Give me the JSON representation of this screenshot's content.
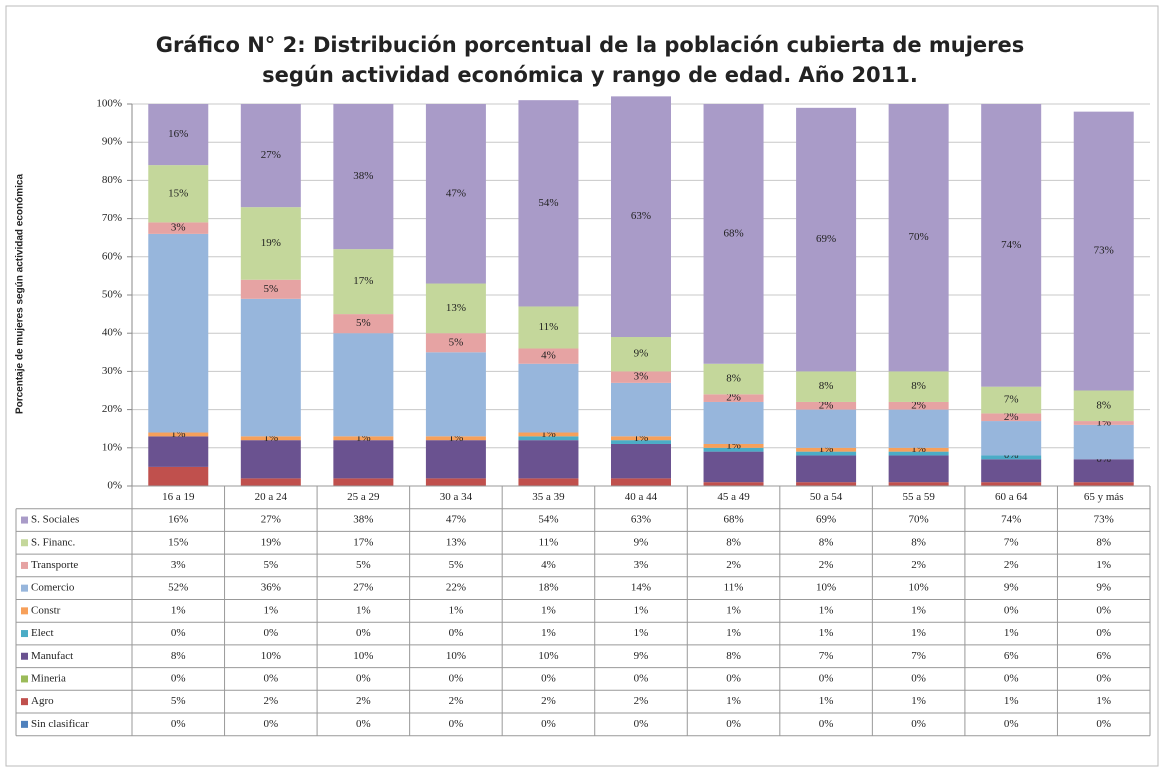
{
  "chart_data": {
    "type": "bar",
    "stacked": true,
    "title": [
      "Gráfico N° 2: Distribución porcentual de la población cubierta de mujeres",
      "según actividad económica y rango de edad. Año 2011."
    ],
    "ylabel": "Porcentaje de mujeres según actividad económica",
    "categories": [
      "16 a 19",
      "20 a 24",
      "25 a 29",
      "30 a 34",
      "35 a 39",
      "40 a 44",
      "45 a 49",
      "50 a 54",
      "55 a 59",
      "60 a 64",
      "65 y más"
    ],
    "ylim": [
      0,
      100
    ],
    "yticks": [
      {
        "value": 0,
        "label": "0%"
      },
      {
        "value": 10,
        "label": "10%"
      },
      {
        "value": 20,
        "label": "20%"
      },
      {
        "value": 30,
        "label": "30%"
      },
      {
        "value": 40,
        "label": "40%"
      },
      {
        "value": 50,
        "label": "50%"
      },
      {
        "value": 60,
        "label": "60%"
      },
      {
        "value": 70,
        "label": "70%"
      },
      {
        "value": 80,
        "label": "80%"
      },
      {
        "value": 90,
        "label": "90%"
      },
      {
        "value": 100,
        "label": "100%"
      }
    ],
    "grid": true,
    "series": [
      {
        "name": "S. Sociales",
        "color": "#a99bc8",
        "data_labels": true,
        "values": [
          16,
          27,
          38,
          47,
          54,
          63,
          68,
          69,
          70,
          74,
          73
        ],
        "value_labels": [
          "16%",
          "27%",
          "38%",
          "47%",
          "54%",
          "63%",
          "68%",
          "69%",
          "70%",
          "74%",
          "73%"
        ]
      },
      {
        "name": "S. Financ.",
        "color": "#c4d79b",
        "data_labels": true,
        "values": [
          15,
          19,
          17,
          13,
          11,
          9,
          8,
          8,
          8,
          7,
          8
        ],
        "value_labels": [
          "15%",
          "19%",
          "17%",
          "13%",
          "11%",
          "9%",
          "8%",
          "8%",
          "8%",
          "7%",
          "8%"
        ]
      },
      {
        "name": "Transporte",
        "color": "#e6a3a3",
        "data_labels": true,
        "values": [
          3,
          5,
          5,
          5,
          4,
          3,
          2,
          2,
          2,
          2,
          1
        ],
        "value_labels": [
          "3%",
          "5%",
          "5%",
          "5%",
          "4%",
          "3%",
          "2%",
          "2%",
          "2%",
          "2%",
          "1%"
        ]
      },
      {
        "name": "Comercio",
        "color": "#97b6dc",
        "values": [
          52,
          36,
          27,
          22,
          18,
          14,
          11,
          10,
          10,
          9,
          9
        ],
        "value_labels": [
          "52%",
          "36%",
          "27%",
          "22%",
          "18%",
          "14%",
          "11%",
          "10%",
          "10%",
          "9%",
          "9%"
        ]
      },
      {
        "name": "Constr",
        "color": "#f7a05a",
        "data_labels": true,
        "values": [
          1,
          1,
          1,
          1,
          1,
          1,
          1,
          1,
          1,
          0,
          0
        ],
        "value_labels": [
          "1%",
          "1%",
          "1%",
          "1%",
          "1%",
          "1%",
          "1%",
          "1%",
          "1%",
          "0%",
          "0%"
        ]
      },
      {
        "name": "Elect",
        "color": "#4bacc6",
        "values": [
          0,
          0,
          0,
          0,
          1,
          1,
          1,
          1,
          1,
          1,
          0
        ],
        "value_labels": [
          "0%",
          "0%",
          "0%",
          "0%",
          "1%",
          "1%",
          "1%",
          "1%",
          "1%",
          "1%",
          "0%"
        ]
      },
      {
        "name": "Manufact",
        "color": "#6a5290",
        "values": [
          8,
          10,
          10,
          10,
          10,
          9,
          8,
          7,
          7,
          6,
          6
        ],
        "value_labels": [
          "8%",
          "10%",
          "10%",
          "10%",
          "10%",
          "9%",
          "8%",
          "7%",
          "7%",
          "6%",
          "6%"
        ]
      },
      {
        "name": "Mineria",
        "color": "#9bbb59",
        "values": [
          0,
          0,
          0,
          0,
          0,
          0,
          0,
          0,
          0,
          0,
          0
        ],
        "value_labels": [
          "0%",
          "0%",
          "0%",
          "0%",
          "0%",
          "0%",
          "0%",
          "0%",
          "0%",
          "0%",
          "0%"
        ]
      },
      {
        "name": "Agro",
        "color": "#c0504d",
        "values": [
          5,
          2,
          2,
          2,
          2,
          2,
          1,
          1,
          1,
          1,
          1
        ],
        "value_labels": [
          "5%",
          "2%",
          "2%",
          "2%",
          "2%",
          "2%",
          "1%",
          "1%",
          "1%",
          "1%",
          "1%"
        ]
      },
      {
        "name": "Sin clasificar",
        "color": "#4f81bd",
        "values": [
          0,
          0,
          0,
          0,
          0,
          0,
          0,
          0,
          0,
          0,
          0
        ],
        "value_labels": [
          "0%",
          "0%",
          "0%",
          "0%",
          "0%",
          "0%",
          "0%",
          "0%",
          "0%",
          "0%",
          "0%"
        ]
      }
    ]
  }
}
